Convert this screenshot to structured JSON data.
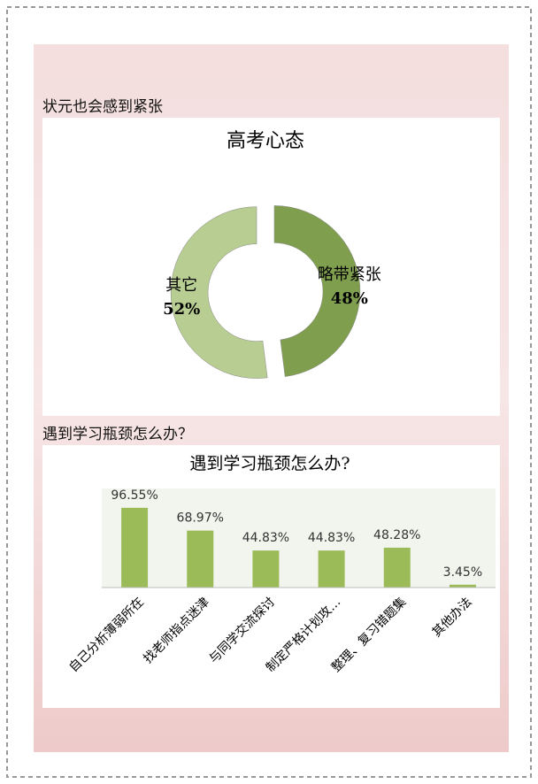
{
  "headings": [
    "状元也会感到紧张",
    "遇到学习瓶颈怎么办？"
  ],
  "chart_data": [
    {
      "type": "pie",
      "title": "高考心态",
      "donut": true,
      "categories": [
        "略带紧张",
        "其它"
      ],
      "values": [
        48,
        52
      ],
      "value_labels": [
        "48%",
        "52%"
      ],
      "colors": [
        "#7f9f4f",
        "#b7cd92"
      ]
    },
    {
      "type": "bar",
      "title": "遇到学习瓶颈怎么办?",
      "categories": [
        "自己分析薄弱所在",
        "找老师指点迷津",
        "与同学交流探讨",
        "制定严格计划攻…",
        "整理、复习错题集",
        "其他办法"
      ],
      "values": [
        96.55,
        68.97,
        44.83,
        44.83,
        48.28,
        3.45
      ],
      "value_labels": [
        "96.55%",
        "68.97%",
        "44.83%",
        "44.83%",
        "48.28%",
        "3.45%"
      ],
      "color": "#9bbb59",
      "ylim": [
        0,
        120
      ]
    }
  ]
}
